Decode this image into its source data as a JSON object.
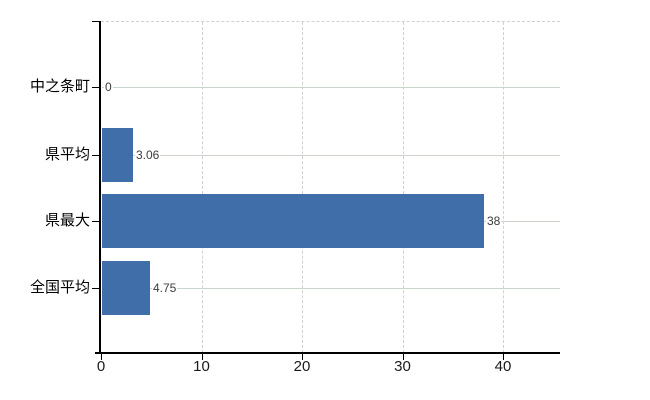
{
  "chart_data": {
    "type": "bar",
    "orientation": "horizontal",
    "title": "",
    "xlabel": "",
    "ylabel": "",
    "categories": [
      "中之条町",
      "県平均",
      "県最大",
      "全国平均"
    ],
    "values": [
      0,
      3.06,
      38,
      4.75
    ],
    "value_labels": [
      "0",
      "3.06",
      "38",
      "4.75"
    ],
    "x_ticks": [
      0,
      10,
      20,
      30,
      40
    ],
    "x_tick_labels": [
      "0",
      "10",
      "20",
      "30",
      "40"
    ],
    "xlim": [
      0,
      45.7
    ],
    "grid": {
      "horizontal": "solid line through each category center",
      "vertical": "dashed line at each x tick",
      "top_border": "dashed"
    },
    "legend": "none"
  },
  "colors": {
    "background": "#FFFFFF",
    "bar": "#3F6EA9",
    "grid_horizontal": "#CCD5CC",
    "grid_vertical": "#D2CEDA",
    "axis": "#000000",
    "category_text": "#000000",
    "x_tick_text": "#1A1A1A",
    "value_text": "#3C3C3C"
  }
}
